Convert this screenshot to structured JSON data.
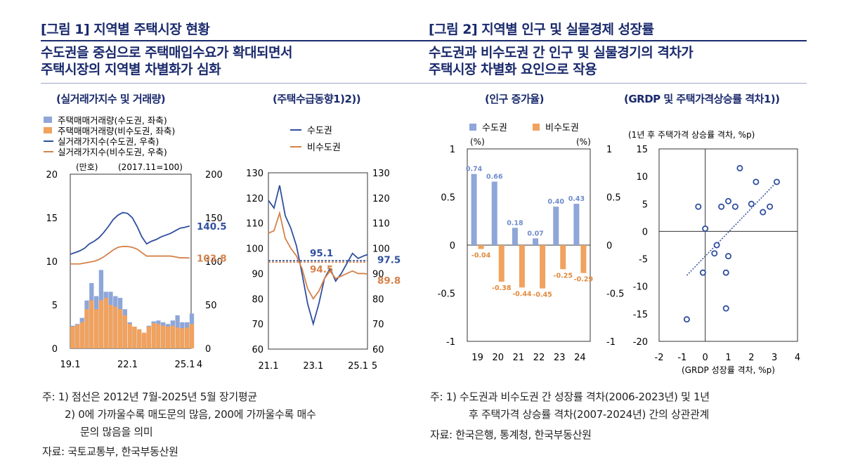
{
  "fig1": {
    "title": "[그림 1] 지역별 주택시장 현황",
    "subtitle_line1": "수도권을 중심으로 주택매입수요가 확대되면서",
    "subtitle_line2": "주택시장의 지역별 차별화가 심화",
    "notes": [
      "주: 1) 점선은 2012년 7월-2025년 5월 장기평균",
      "2) 0에 가까울수록 매도문의 많음, 200에 가까울수록 매수",
      "문의 많음을 의미",
      "자료: 국토교통부, 한국부동산원"
    ]
  },
  "fig2": {
    "title": "[그림 2] 지역별 인구 및 실물경제 성장률",
    "subtitle_line1": "수도권과 비수도권 간 인구 및 실물경기의 격차가",
    "subtitle_line2": "주택시장 차별화 요인으로 작용",
    "notes": [
      "주: 1) 수도권과 비수도권 간 성장률 격차(2006-2023년) 및 1년",
      "후 주택가격 상승률 격차(2007-2024년) 간의 상관관계",
      "자료: 한국은행, 통계청, 한국부동산원"
    ]
  },
  "colors": {
    "capital_bar": "#8ea6d8",
    "noncapital_bar": "#f0a25e",
    "capital_line": "#2f4f9e",
    "noncapital_line": "#d5824a",
    "navy": "#1a2a6c"
  },
  "chart_data": [
    {
      "id": "p1",
      "type": "bar",
      "title": "(실거래가지수 및 거래량)",
      "legend": [
        "주택매매거래량(수도권, 좌축)",
        "주택매매거래량(비수도권, 좌축)",
        "실거래가지수(수도권, 우축)",
        "실거래가지수(비수도권, 우축)"
      ],
      "left_unit": "(만호)",
      "right_unit": "(2017.11=100)",
      "ylim_left": [
        0,
        20
      ],
      "ylim_right": [
        0,
        200
      ],
      "left_ticks": [
        "20",
        "15",
        "10",
        "5",
        "0"
      ],
      "right_ticks": [
        "200",
        "150",
        "100",
        "50",
        "0"
      ],
      "x_ticks": [
        "19.1",
        "22.1",
        "25.1",
        "4"
      ],
      "end_labels": {
        "capital": "140.5",
        "noncapital": "103.8"
      },
      "x": [
        2019.0,
        2019.25,
        2019.5,
        2019.75,
        2020.0,
        2020.25,
        2020.5,
        2020.75,
        2021.0,
        2021.25,
        2021.5,
        2021.75,
        2022.0,
        2022.25,
        2022.5,
        2022.75,
        2023.0,
        2023.25,
        2023.5,
        2023.75,
        2024.0,
        2024.25,
        2024.5,
        2024.75,
        2025.0,
        2025.25
      ],
      "series": [
        {
          "name": "주택매매거래량(수도권, 좌축)",
          "values": [
            2.6,
            2.8,
            3.5,
            5.5,
            7.5,
            6.0,
            9.0,
            6.5,
            6.5,
            6.0,
            5.8,
            4.5,
            3.0,
            2.5,
            1.8,
            1.5,
            2.6,
            3.1,
            3.2,
            3.0,
            2.8,
            3.2,
            3.8,
            3.0,
            3.0,
            4.0
          ]
        },
        {
          "name": "주택매매거래량(비수도권, 좌축)",
          "values": [
            2.5,
            2.7,
            3.0,
            4.5,
            5.5,
            4.5,
            5.5,
            5.8,
            5.0,
            4.8,
            4.5,
            3.8,
            2.8,
            2.5,
            2.2,
            1.8,
            2.5,
            2.9,
            2.8,
            2.6,
            2.5,
            2.6,
            2.4,
            2.3,
            2.4,
            2.8
          ]
        },
        {
          "name": "실거래가지수(수도권, 우축)",
          "values": [
            108,
            110,
            112,
            115,
            120,
            123,
            127,
            133,
            140,
            148,
            153,
            156,
            155,
            150,
            140,
            128,
            120,
            123,
            125,
            128,
            130,
            132,
            135,
            138,
            139,
            140.5
          ]
        },
        {
          "name": "실거래가지수(비수도권, 우축)",
          "values": [
            97,
            97,
            97,
            98,
            99,
            100,
            102,
            105,
            109,
            113,
            116,
            117,
            117,
            116,
            114,
            110,
            106,
            106,
            106,
            106,
            106,
            106,
            105,
            104,
            104,
            103.8
          ]
        }
      ]
    },
    {
      "id": "p2",
      "type": "line",
      "title": "(주택수급동향1)2))",
      "legend": [
        "수도권",
        "비수도권"
      ],
      "ylim": [
        60,
        130
      ],
      "y_ticks": [
        "130",
        "120",
        "110",
        "100",
        "90",
        "80",
        "70",
        "60"
      ],
      "x_ticks": [
        "21.1",
        "23.1",
        "25.1",
        "5"
      ],
      "averages": {
        "capital": 95.1,
        "noncapital": 94.5
      },
      "avg_labels": {
        "capital": "95.1",
        "noncapital": "94.5"
      },
      "end_labels": {
        "capital": "97.5",
        "noncapital": "89.8"
      },
      "x": [
        2021.0,
        2021.25,
        2021.5,
        2021.75,
        2022.0,
        2022.25,
        2022.5,
        2022.75,
        2023.0,
        2023.25,
        2023.5,
        2023.75,
        2024.0,
        2024.25,
        2024.5,
        2024.75,
        2025.0,
        2025.25,
        2025.42
      ],
      "series": [
        {
          "name": "수도권",
          "values": [
            119,
            116,
            125,
            113,
            108,
            101,
            90,
            78,
            70,
            78,
            88,
            92,
            87,
            90,
            94,
            98,
            96,
            97,
            97.5
          ]
        },
        {
          "name": "비수도권",
          "values": [
            106,
            107,
            114,
            104,
            100,
            97,
            92,
            84,
            80,
            83,
            88,
            91,
            88,
            89,
            90,
            91,
            90,
            90,
            89.8
          ]
        }
      ]
    },
    {
      "id": "p3",
      "type": "bar",
      "title": "(인구 증가율)",
      "legend": [
        "수도권",
        "비수도권"
      ],
      "unit": "(%)",
      "ylim": [
        -1,
        1
      ],
      "y_ticks": [
        "1",
        "0.5",
        "0",
        "-0.5",
        "-1"
      ],
      "categories": [
        "19",
        "20",
        "21",
        "22",
        "23",
        "24"
      ],
      "series": [
        {
          "name": "수도권",
          "values": [
            0.74,
            0.66,
            0.18,
            0.07,
            0.4,
            0.43
          ],
          "labels": [
            "0.74",
            "0.66",
            "0.18",
            "0.07",
            "0.40",
            "0.43"
          ]
        },
        {
          "name": "비수도권",
          "values": [
            -0.04,
            -0.38,
            -0.44,
            -0.45,
            -0.25,
            -0.29
          ],
          "labels": [
            "-0.04",
            "-0.38",
            "-0.44",
            "-0.45",
            "-0.25",
            "-0.29"
          ]
        }
      ]
    },
    {
      "id": "p4",
      "type": "scatter",
      "title": "(GRDP 및 주택가격상승률 격차1))",
      "ylabel": "(1년 후 주택가격 상승률 격차, %p)",
      "xlabel": "(GRDP 성장률 격차, %p)",
      "xlim": [
        -2,
        4
      ],
      "ylim": [
        -20,
        15
      ],
      "x_ticks": [
        "-2",
        "-1",
        "0",
        "1",
        "2",
        "3",
        "4"
      ],
      "y_ticks": [
        "15",
        "10",
        "5",
        "0",
        "-5",
        "-10",
        "-15",
        "-20"
      ],
      "points": [
        [
          -0.8,
          -16
        ],
        [
          -0.1,
          -7.5
        ],
        [
          -0.3,
          4.5
        ],
        [
          0.0,
          0.5
        ],
        [
          0.4,
          -4
        ],
        [
          0.5,
          -2.5
        ],
        [
          0.7,
          4.5
        ],
        [
          1.0,
          5.5
        ],
        [
          1.0,
          -4.5
        ],
        [
          0.9,
          -7.5
        ],
        [
          0.9,
          -14
        ],
        [
          1.3,
          4.5
        ],
        [
          1.5,
          11.5
        ],
        [
          2.0,
          5
        ],
        [
          2.2,
          9
        ],
        [
          2.5,
          3.5
        ],
        [
          2.8,
          4.5
        ],
        [
          3.1,
          9
        ]
      ],
      "trend": [
        [
          -0.8,
          -8
        ],
        [
          3.1,
          9
        ]
      ]
    }
  ]
}
